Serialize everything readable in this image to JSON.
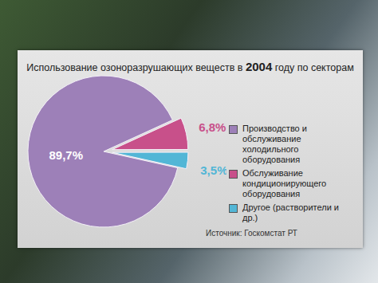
{
  "chart_data": {
    "type": "pie",
    "title": "Использование озоноразрушающих веществ в 2004 году по секторам",
    "categories": [
      "Производство и обслуживание холодильного оборудования",
      "Обслуживание кондиционирующего оборудования",
      "Другое (растворители и др.)"
    ],
    "values": [
      89.7,
      6.8,
      3.5
    ],
    "value_labels": [
      "89,7%",
      "6,8%",
      "3,5%"
    ],
    "colors": [
      "#9d80b8",
      "#c8508a",
      "#52b6d6"
    ],
    "data_labels": true,
    "legend": "right",
    "source": "Источник: Госкомстат РТ"
  }
}
